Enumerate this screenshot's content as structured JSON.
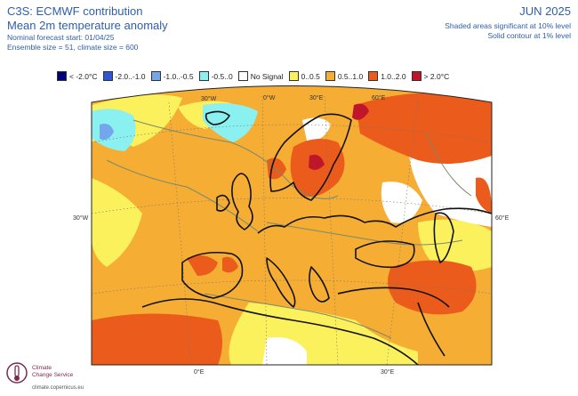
{
  "header": {
    "org": "C3S: ECMWF contribution",
    "title": "Mean 2m temperature anomaly",
    "forecast_start": "Nominal forecast start: 01/04/25",
    "ensemble": "Ensemble size = 51, climate size = 600",
    "month": "JUN 2025",
    "note_shaded": "Shaded areas significant at 10% level",
    "note_contour": "Solid contour at 1% level"
  },
  "legend": [
    {
      "label": "< -2.0°C",
      "color": "#00007a"
    },
    {
      "label": "-2.0..-1.0",
      "color": "#2e57d6"
    },
    {
      "label": "-1.0..-0.5",
      "color": "#73a6ea"
    },
    {
      "label": "-0.5..0",
      "color": "#8af0f0"
    },
    {
      "label": "No Signal",
      "color": "#ffffff"
    },
    {
      "label": "0..0.5",
      "color": "#fbf15d"
    },
    {
      "label": "0.5..1.0",
      "color": "#f5ad34"
    },
    {
      "label": "1.0..2.0",
      "color": "#ea5b1c"
    },
    {
      "label": "> 2.0°C",
      "color": "#c0162c"
    }
  ],
  "map_labels": {
    "top_30w": "30°W",
    "top_0e": "0°W",
    "top_30e": "30°E",
    "top_60e": "60°E",
    "left_30w": "30°W",
    "right_60e": "60°E",
    "bottom_0e": "0°E",
    "bottom_30e": "30°E"
  },
  "logo": {
    "line1": "Climate",
    "line2": "Change Service",
    "url": "climate.copernicus.eu"
  }
}
